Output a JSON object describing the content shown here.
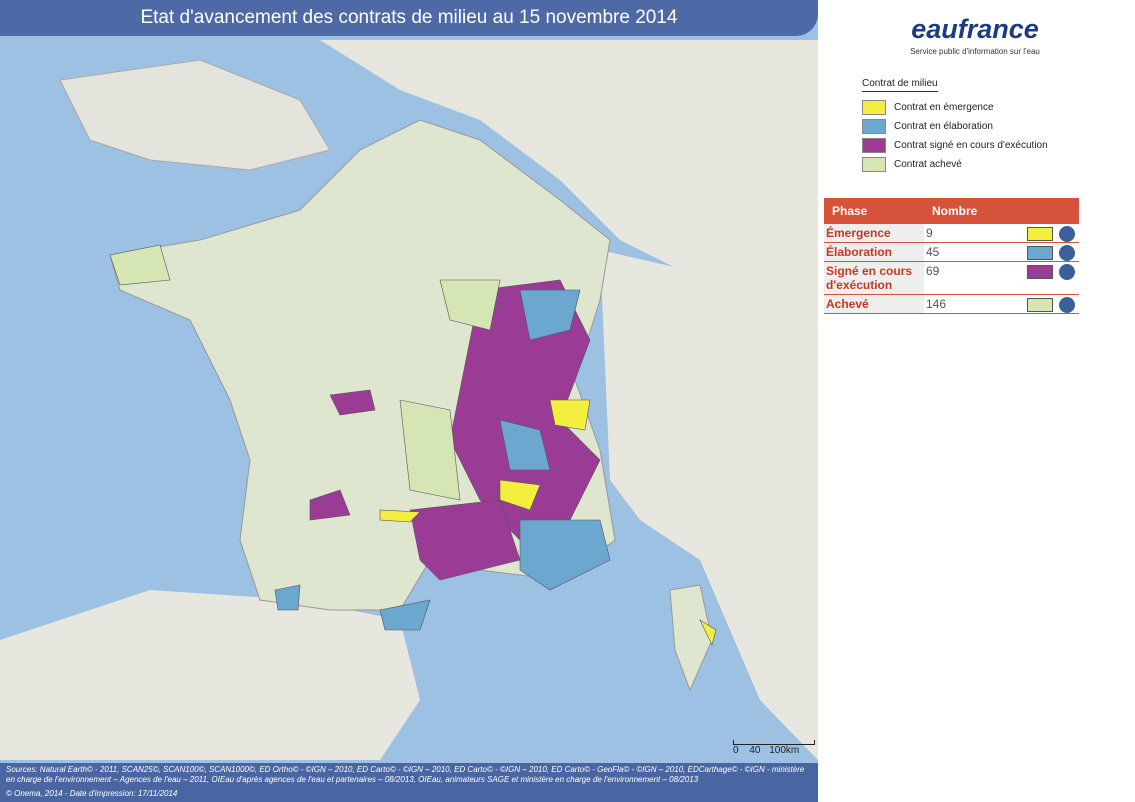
{
  "header": {
    "title": "Etat d'avancement des contrats de milieu au 15 novembre 2014"
  },
  "logo": {
    "name": "eaufrance",
    "tagline": "Service public d'information sur l'eau"
  },
  "legend": {
    "title": "Contrat de milieu",
    "items": [
      {
        "label": "Contrat en émergence",
        "color": "#f4ee3e"
      },
      {
        "label": "Contrat en élaboration",
        "color": "#6ca7cf"
      },
      {
        "label": "Contrat signé en cours d'exécution",
        "color": "#9a3c96"
      },
      {
        "label": "Contrat achevé",
        "color": "#d6e5b4"
      }
    ]
  },
  "table": {
    "columns": [
      "Phase",
      "Nombre"
    ],
    "rows": [
      {
        "phase": "Émergence",
        "count": "9",
        "color": "#f4ee3e"
      },
      {
        "phase": "Élaboration",
        "count": "45",
        "color": "#6ca7cf"
      },
      {
        "phase": "Signé en cours d'exécution",
        "count": "69",
        "color": "#9a3c96"
      },
      {
        "phase": "Achevé",
        "count": "146",
        "color": "#d6e5b4"
      }
    ]
  },
  "scale": {
    "labels": [
      "0",
      "40",
      "100km"
    ]
  },
  "footer": {
    "sources": "Sources: Natural Earth© - 2011, SCAN25©, SCAN100©, SCAN1000©, ED Ortho© - ©IGN – 2010, ED Carto© - ©IGN – 2010, ED Carto© - ©IGN – 2010, ED Carto© - GeoFla© - ©IGN – 2010, EDCarthage© - ©IGN - ministère en charge de l'environnement – Agences de l'eau – 2011, OIEau d'après agences de l'eau et partenaires – 08/2013, OIEau, animateurs SAGE et ministère en charge de l'environnement – 08/2013",
    "copyright": "© Onema, 2014 - Date d'impression: 17/11/2014"
  }
}
